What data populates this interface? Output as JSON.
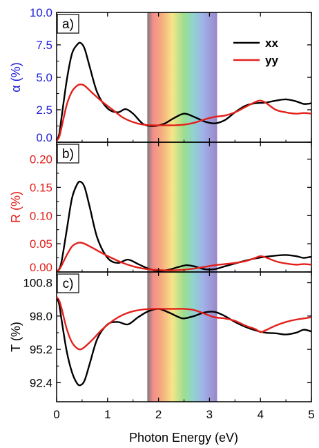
{
  "chart_data": {
    "type": "line",
    "xlabel": "Photon Energy (eV)",
    "xlim": [
      0,
      5
    ],
    "x_ticks": [
      "0",
      "1",
      "2",
      "3",
      "4",
      "5"
    ],
    "visible_band": [
      1.78,
      3.15
    ],
    "legend": [
      {
        "name": "xx",
        "color": "#000000"
      },
      {
        "name": "yy",
        "color": "#e3201b"
      }
    ],
    "panels": [
      {
        "label": "a)",
        "ylabel": "α (%)",
        "ylabel_color": "#1f1fd8",
        "ylim": [
          0,
          10
        ],
        "y_ticks": [
          "0.0",
          "2.5",
          "5.0",
          "7.5",
          "10.0"
        ],
        "series": [
          {
            "name": "xx",
            "color": "#000000",
            "x": [
              0,
              0.05,
              0.1,
              0.2,
              0.3,
              0.4,
              0.47,
              0.55,
              0.65,
              0.8,
              1.0,
              1.2,
              1.35,
              1.5,
              1.7,
              1.9,
              2.1,
              2.3,
              2.5,
              2.7,
              2.9,
              3.1,
              3.3,
              3.5,
              3.7,
              3.9,
              4.1,
              4.3,
              4.5,
              4.7,
              4.85,
              5.0
            ],
            "y": [
              0.1,
              0.6,
              2.0,
              4.8,
              6.8,
              7.5,
              7.65,
              7.2,
              5.8,
              3.8,
              2.6,
              2.3,
              2.55,
              2.2,
              1.4,
              1.25,
              1.4,
              1.85,
              2.2,
              1.95,
              1.6,
              1.45,
              1.7,
              2.3,
              2.8,
              3.0,
              3.05,
              3.2,
              3.3,
              3.15,
              2.95,
              3.0
            ]
          },
          {
            "name": "yy",
            "color": "#e3201b",
            "x": [
              0,
              0.05,
              0.1,
              0.2,
              0.3,
              0.4,
              0.47,
              0.55,
              0.7,
              0.9,
              1.1,
              1.3,
              1.5,
              1.7,
              1.9,
              2.1,
              2.3,
              2.5,
              2.7,
              2.9,
              3.1,
              3.3,
              3.5,
              3.7,
              3.9,
              4.0,
              4.1,
              4.3,
              4.5,
              4.7,
              4.85,
              5.0
            ],
            "y": [
              0.1,
              0.4,
              1.2,
              2.9,
              3.9,
              4.35,
              4.45,
              4.35,
              3.8,
              3.1,
              2.5,
              1.9,
              1.55,
              1.35,
              1.3,
              1.3,
              1.3,
              1.35,
              1.5,
              1.75,
              1.95,
              2.05,
              2.3,
              2.7,
              3.1,
              3.2,
              3.05,
              2.5,
              2.3,
              2.2,
              2.25,
              2.2
            ]
          }
        ]
      },
      {
        "label": "b)",
        "ylabel": "R (%)",
        "ylabel_color": "#e3201b",
        "ylim": [
          0,
          0.23
        ],
        "y_ticks": [
          "0.00",
          "0.05",
          "0.10",
          "0.15",
          "0.20"
        ],
        "y_tick_values": [
          0,
          0.05,
          0.1,
          0.15,
          0.2
        ],
        "series": [
          {
            "name": "xx",
            "color": "#000000",
            "x": [
              0,
              0.05,
              0.1,
              0.2,
              0.3,
              0.4,
              0.47,
              0.55,
              0.65,
              0.8,
              1.0,
              1.2,
              1.4,
              1.6,
              1.8,
              2.0,
              2.2,
              2.4,
              2.55,
              2.7,
              2.9,
              3.1,
              3.3,
              3.5,
              3.7,
              3.9,
              4.1,
              4.3,
              4.5,
              4.7,
              4.85,
              5.0
            ],
            "y": [
              0.001,
              0.005,
              0.02,
              0.075,
              0.13,
              0.155,
              0.16,
              0.15,
              0.115,
              0.06,
              0.025,
              0.016,
              0.022,
              0.014,
              0.006,
              0.002,
              0.004,
              0.009,
              0.012,
              0.01,
              0.005,
              0.005,
              0.01,
              0.015,
              0.02,
              0.024,
              0.027,
              0.029,
              0.03,
              0.028,
              0.025,
              0.027
            ]
          },
          {
            "name": "yy",
            "color": "#e3201b",
            "x": [
              0,
              0.05,
              0.1,
              0.2,
              0.3,
              0.4,
              0.47,
              0.55,
              0.7,
              0.9,
              1.1,
              1.3,
              1.5,
              1.7,
              1.9,
              2.1,
              2.3,
              2.5,
              2.7,
              2.9,
              3.1,
              3.3,
              3.5,
              3.7,
              3.9,
              4.0,
              4.1,
              4.3,
              4.5,
              4.7,
              4.85,
              5.0
            ],
            "y": [
              0.001,
              0.004,
              0.012,
              0.03,
              0.045,
              0.051,
              0.052,
              0.05,
              0.043,
              0.033,
              0.024,
              0.016,
              0.01,
              0.006,
              0.004,
              0.003,
              0.003,
              0.004,
              0.006,
              0.009,
              0.012,
              0.014,
              0.016,
              0.019,
              0.025,
              0.028,
              0.026,
              0.019,
              0.015,
              0.013,
              0.014,
              0.013
            ]
          }
        ]
      },
      {
        "label": "c)",
        "ylabel": "T (%)",
        "ylabel_color": "#000000",
        "ylim": [
          90.8,
          101.7
        ],
        "y_ticks": [
          "92.4",
          "95.2",
          "98.0",
          "100.8"
        ],
        "y_tick_values": [
          92.4,
          95.2,
          98.0,
          100.8
        ],
        "series": [
          {
            "name": "xx",
            "color": "#000000",
            "x": [
              0,
              0.05,
              0.1,
              0.2,
              0.3,
              0.4,
              0.47,
              0.55,
              0.65,
              0.8,
              1.0,
              1.2,
              1.4,
              1.6,
              1.8,
              2.0,
              2.2,
              2.4,
              2.5,
              2.7,
              2.9,
              3.1,
              3.3,
              3.5,
              3.7,
              3.9,
              4.1,
              4.3,
              4.5,
              4.7,
              4.85,
              5.0
            ],
            "y": [
              99.6,
              99.0,
              97.6,
              95.0,
              93.3,
              92.35,
              92.2,
              92.6,
              94.0,
              96.1,
              97.3,
              97.5,
              97.3,
              97.9,
              98.4,
              98.6,
              98.3,
              97.9,
              97.8,
              98.0,
              98.3,
              98.35,
              98.0,
              97.5,
              97.1,
              96.8,
              96.6,
              96.55,
              96.45,
              96.6,
              96.85,
              96.7
            ]
          },
          {
            "name": "yy",
            "color": "#e3201b",
            "x": [
              0,
              0.05,
              0.1,
              0.2,
              0.3,
              0.4,
              0.47,
              0.55,
              0.7,
              0.9,
              1.1,
              1.3,
              1.5,
              1.7,
              1.9,
              2.1,
              2.3,
              2.5,
              2.7,
              2.9,
              3.1,
              3.3,
              3.5,
              3.7,
              3.9,
              4.0,
              4.1,
              4.3,
              4.5,
              4.7,
              4.85,
              5.0
            ],
            "y": [
              99.6,
              99.3,
              98.6,
              96.9,
              95.8,
              95.3,
              95.2,
              95.4,
              96.0,
              96.9,
              97.6,
              98.1,
              98.4,
              98.55,
              98.6,
              98.6,
              98.6,
              98.6,
              98.5,
              98.2,
              97.9,
              97.8,
              97.6,
              97.2,
              96.9,
              96.65,
              96.8,
              97.2,
              97.5,
              97.7,
              97.8,
              97.9
            ]
          }
        ]
      }
    ]
  }
}
